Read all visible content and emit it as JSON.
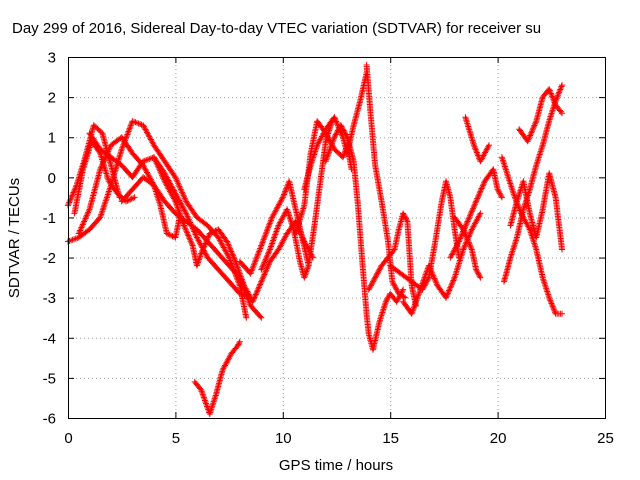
{
  "chart_data": {
    "type": "scatter",
    "title": "Day 299 of 2016, Sidereal Day-to-day VTEC variation (SDTVAR) for receiver su",
    "xlabel": "GPS time / hours",
    "ylabel": "SDTVAR / TECUs",
    "xlim": [
      0,
      25
    ],
    "ylim": [
      -6,
      3
    ],
    "xticks": [
      "0",
      "5",
      "10",
      "15",
      "20",
      "25"
    ],
    "yticks": [
      "3",
      "2",
      "1",
      "0",
      "-1",
      "-2",
      "-3",
      "-4",
      "-5",
      "-6"
    ],
    "grid": true,
    "marker": "+",
    "color": "#ff0000",
    "traces": [
      [
        [
          0.0,
          -0.7
        ],
        [
          0.4,
          -0.2
        ],
        [
          0.8,
          0.5
        ],
        [
          1.2,
          1.3
        ],
        [
          1.6,
          1.1
        ],
        [
          2.0,
          0.3
        ],
        [
          2.4,
          -0.5
        ]
      ],
      [
        [
          0.0,
          -1.6
        ],
        [
          0.5,
          -1.5
        ],
        [
          1.0,
          -1.3
        ],
        [
          1.5,
          -1.0
        ],
        [
          2.0,
          -0.2
        ],
        [
          2.5,
          0.7
        ],
        [
          3.0,
          1.4
        ],
        [
          3.5,
          1.3
        ],
        [
          4.0,
          0.8
        ],
        [
          4.5,
          0.4
        ],
        [
          5.0,
          0.0
        ],
        [
          5.5,
          -0.6
        ],
        [
          6.0,
          -1.0
        ],
        [
          6.5,
          -1.2
        ],
        [
          7.0,
          -1.5
        ],
        [
          7.5,
          -2.0
        ],
        [
          8.0,
          -2.7
        ],
        [
          8.3,
          -3.5
        ]
      ],
      [
        [
          0.3,
          -0.9
        ],
        [
          0.7,
          0.2
        ],
        [
          1.1,
          0.9
        ],
        [
          1.5,
          0.6
        ],
        [
          1.9,
          -0.1
        ],
        [
          2.3,
          -0.4
        ],
        [
          2.7,
          -0.6
        ],
        [
          3.1,
          -0.5
        ]
      ],
      [
        [
          0.5,
          -1.4
        ],
        [
          1.0,
          -0.8
        ],
        [
          1.5,
          0.2
        ],
        [
          2.0,
          0.8
        ],
        [
          2.5,
          1.0
        ],
        [
          3.0,
          0.6
        ],
        [
          3.5,
          0.3
        ],
        [
          4.0,
          -0.2
        ],
        [
          4.5,
          -0.6
        ],
        [
          5.0,
          -0.9
        ],
        [
          5.5,
          -1.1
        ],
        [
          6.0,
          -1.3
        ],
        [
          6.5,
          -1.6
        ],
        [
          7.0,
          -1.9
        ],
        [
          7.5,
          -2.2
        ],
        [
          8.0,
          -2.5
        ],
        [
          8.5,
          -3.2
        ],
        [
          9.0,
          -3.5
        ]
      ],
      [
        [
          1.0,
          1.1
        ],
        [
          1.5,
          0.7
        ],
        [
          2.0,
          0.5
        ],
        [
          2.5,
          0.3
        ],
        [
          3.0,
          0.0
        ],
        [
          3.5,
          0.4
        ],
        [
          4.0,
          0.5
        ],
        [
          4.5,
          0.1
        ],
        [
          5.0,
          -0.4
        ],
        [
          5.5,
          -0.9
        ],
        [
          6.0,
          -1.5
        ],
        [
          6.5,
          -2.0
        ],
        [
          7.0,
          -2.3
        ],
        [
          7.5,
          -2.6
        ],
        [
          8.0,
          -2.9
        ],
        [
          8.5,
          -3.0
        ]
      ],
      [
        [
          2.5,
          -0.6
        ],
        [
          3.0,
          -0.3
        ],
        [
          3.5,
          0.0
        ],
        [
          4.0,
          -0.2
        ],
        [
          4.3,
          -0.7
        ],
        [
          4.6,
          -1.4
        ],
        [
          5.0,
          -1.5
        ],
        [
          5.2,
          -1.0
        ]
      ],
      [
        [
          4.0,
          0.5
        ],
        [
          4.5,
          -0.1
        ],
        [
          5.0,
          -0.6
        ],
        [
          5.4,
          -1.2
        ],
        [
          5.8,
          -1.7
        ],
        [
          6.0,
          -2.2
        ],
        [
          6.2,
          -1.9
        ],
        [
          6.6,
          -1.4
        ],
        [
          7.0,
          -1.3
        ],
        [
          7.4,
          -1.6
        ],
        [
          7.8,
          -2.1
        ],
        [
          8.2,
          -2.7
        ],
        [
          8.6,
          -3.1
        ],
        [
          9.0,
          -2.6
        ],
        [
          9.4,
          -2.1
        ],
        [
          9.8,
          -1.8
        ],
        [
          10.2,
          -1.4
        ],
        [
          10.6,
          -1.1
        ],
        [
          11.0,
          -1.6
        ],
        [
          11.4,
          -2.0
        ]
      ],
      [
        [
          5.9,
          -5.1
        ],
        [
          6.2,
          -5.3
        ],
        [
          6.6,
          -5.9
        ],
        [
          6.9,
          -5.4
        ],
        [
          7.2,
          -4.8
        ],
        [
          7.6,
          -4.4
        ],
        [
          7.9,
          -4.2
        ],
        [
          8.0,
          -4.1
        ]
      ],
      [
        [
          8.0,
          -2.1
        ],
        [
          8.5,
          -2.4
        ],
        [
          9.0,
          -1.7
        ],
        [
          9.5,
          -1.0
        ],
        [
          10.0,
          -0.5
        ],
        [
          10.3,
          -0.1
        ],
        [
          10.6,
          -0.8
        ],
        [
          10.9,
          -1.5
        ],
        [
          11.2,
          -2.2
        ]
      ],
      [
        [
          9.0,
          -2.3
        ],
        [
          9.4,
          -1.8
        ],
        [
          9.8,
          -1.2
        ],
        [
          10.2,
          -0.8
        ],
        [
          10.5,
          -1.3
        ],
        [
          10.8,
          -2.1
        ],
        [
          11.0,
          -2.5
        ],
        [
          11.2,
          -2.2
        ],
        [
          11.5,
          -1.1
        ],
        [
          11.8,
          0.1
        ],
        [
          12.0,
          0.9
        ],
        [
          12.3,
          1.4
        ]
      ],
      [
        [
          10.6,
          -1.4
        ],
        [
          11.0,
          -0.7
        ],
        [
          11.3,
          0.6
        ],
        [
          11.6,
          1.4
        ],
        [
          12.0,
          1.1
        ],
        [
          12.4,
          0.7
        ],
        [
          12.8,
          0.5
        ],
        [
          13.0,
          0.8
        ],
        [
          13.2,
          0.2
        ]
      ],
      [
        [
          11.0,
          -0.3
        ],
        [
          11.3,
          0.3
        ],
        [
          11.6,
          0.8
        ],
        [
          12.0,
          1.2
        ],
        [
          12.4,
          1.5
        ],
        [
          12.8,
          1.0
        ],
        [
          13.0,
          0.6
        ],
        [
          13.3,
          1.3
        ],
        [
          13.6,
          1.9
        ],
        [
          13.9,
          2.6
        ]
      ],
      [
        [
          12.0,
          0.4
        ],
        [
          12.4,
          1.0
        ],
        [
          12.7,
          1.3
        ],
        [
          13.0,
          1.0
        ],
        [
          13.3,
          0.4
        ],
        [
          13.5,
          -0.7
        ],
        [
          13.7,
          -2.1
        ],
        [
          13.9,
          -3.4
        ],
        [
          14.0,
          -3.9
        ],
        [
          14.2,
          -4.3
        ],
        [
          14.5,
          -3.6
        ],
        [
          14.8,
          -3.1
        ],
        [
          15.0,
          -2.9
        ],
        [
          15.3,
          -3.1
        ],
        [
          15.6,
          -2.8
        ]
      ],
      [
        [
          13.9,
          2.8
        ],
        [
          14.1,
          1.5
        ],
        [
          14.3,
          0.3
        ],
        [
          14.6,
          -0.6
        ],
        [
          14.9,
          -1.6
        ],
        [
          15.1,
          -2.6
        ],
        [
          15.4,
          -2.9
        ],
        [
          15.7,
          -3.0
        ]
      ],
      [
        [
          14.0,
          -2.8
        ],
        [
          14.3,
          -2.5
        ],
        [
          14.6,
          -2.2
        ],
        [
          14.9,
          -2.0
        ],
        [
          15.2,
          -1.8
        ],
        [
          15.4,
          -1.3
        ],
        [
          15.6,
          -0.9
        ],
        [
          15.8,
          -1.1
        ],
        [
          16.0,
          -2.7
        ],
        [
          16.2,
          -3.2
        ]
      ],
      [
        [
          15.0,
          -2.2
        ],
        [
          15.5,
          -2.4
        ],
        [
          16.0,
          -2.6
        ],
        [
          16.5,
          -2.8
        ],
        [
          16.8,
          -2.5
        ],
        [
          17.1,
          -1.6
        ],
        [
          17.4,
          -0.6
        ],
        [
          17.6,
          -0.1
        ],
        [
          17.8,
          -0.5
        ],
        [
          18.0,
          -1.3
        ],
        [
          18.2,
          -2.0
        ]
      ],
      [
        [
          15.6,
          -3.1
        ],
        [
          16.0,
          -3.4
        ],
        [
          16.4,
          -2.8
        ],
        [
          16.8,
          -2.2
        ],
        [
          17.2,
          -2.7
        ],
        [
          17.6,
          -3.0
        ],
        [
          18.0,
          -2.5
        ],
        [
          18.4,
          -1.8
        ],
        [
          18.8,
          -1.3
        ],
        [
          19.2,
          -0.9
        ]
      ],
      [
        [
          18.5,
          1.5
        ],
        [
          18.9,
          0.8
        ],
        [
          19.2,
          0.4
        ],
        [
          19.6,
          0.8
        ]
      ],
      [
        [
          17.8,
          -2.0
        ],
        [
          18.2,
          -1.6
        ],
        [
          18.6,
          -1.1
        ],
        [
          19.0,
          -0.6
        ],
        [
          19.4,
          -0.1
        ],
        [
          19.8,
          0.2
        ],
        [
          20.0,
          -0.3
        ],
        [
          20.2,
          -0.5
        ]
      ],
      [
        [
          18.0,
          -1.0
        ],
        [
          18.4,
          -1.3
        ],
        [
          18.8,
          -1.8
        ],
        [
          19.0,
          -2.3
        ],
        [
          19.2,
          -2.5
        ]
      ],
      [
        [
          20.2,
          0.5
        ],
        [
          20.5,
          0.0
        ],
        [
          20.8,
          -0.5
        ],
        [
          21.1,
          -0.9
        ],
        [
          21.5,
          -1.3
        ],
        [
          21.8,
          -1.8
        ],
        [
          22.1,
          -2.5
        ],
        [
          22.4,
          -3.0
        ],
        [
          22.7,
          -3.4
        ],
        [
          23.0,
          -3.4
        ]
      ],
      [
        [
          20.3,
          -2.6
        ],
        [
          20.6,
          -2.0
        ],
        [
          20.9,
          -1.5
        ],
        [
          21.2,
          -0.8
        ],
        [
          21.5,
          -0.3
        ],
        [
          21.8,
          0.3
        ],
        [
          22.1,
          0.8
        ],
        [
          22.4,
          1.4
        ],
        [
          22.7,
          1.9
        ],
        [
          23.0,
          2.3
        ]
      ],
      [
        [
          21.0,
          1.2
        ],
        [
          21.4,
          0.9
        ],
        [
          21.8,
          1.4
        ],
        [
          22.1,
          2.0
        ],
        [
          22.4,
          2.2
        ],
        [
          22.7,
          1.8
        ],
        [
          23.0,
          1.6
        ]
      ],
      [
        [
          20.6,
          -1.2
        ],
        [
          20.9,
          -0.6
        ],
        [
          21.2,
          -0.1
        ],
        [
          21.5,
          -0.9
        ],
        [
          21.8,
          -1.5
        ],
        [
          22.1,
          -0.8
        ],
        [
          22.4,
          0.1
        ],
        [
          22.7,
          -0.5
        ],
        [
          23.0,
          -1.8
        ]
      ]
    ]
  }
}
